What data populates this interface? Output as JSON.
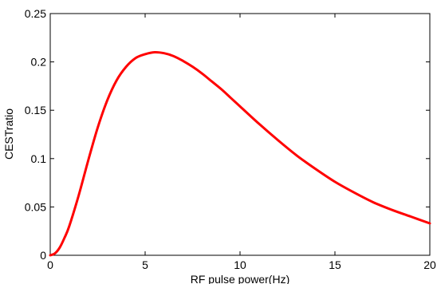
{
  "chart_data": {
    "type": "line",
    "xlabel": "RF pulse power(Hz)",
    "ylabel": "CESTratio",
    "xlim": [
      0,
      20
    ],
    "ylim": [
      0,
      0.25
    ],
    "xticks": [
      0,
      5,
      10,
      15,
      20
    ],
    "yticks": [
      0,
      0.05,
      0.1,
      0.15,
      0.2,
      0.25
    ],
    "xtick_labels": [
      "0",
      "5",
      "10",
      "15",
      "20"
    ],
    "ytick_labels": [
      "0",
      "0.05",
      "0.1",
      "0.15",
      "0.2",
      "0.25"
    ],
    "grid": false,
    "line_color": "#ff0000",
    "series": [
      {
        "x": [
          0,
          0.25,
          0.5,
          0.75,
          1,
          1.5,
          2,
          2.5,
          3,
          3.5,
          4,
          4.5,
          5,
          5.5,
          6,
          6.5,
          7,
          7.5,
          8,
          8.5,
          9,
          9.5,
          10,
          11,
          12,
          13,
          14,
          15,
          16,
          17,
          18,
          19,
          20
        ],
        "y": [
          0,
          0.002,
          0.008,
          0.018,
          0.03,
          0.062,
          0.098,
          0.132,
          0.16,
          0.181,
          0.195,
          0.204,
          0.208,
          0.21,
          0.209,
          0.206,
          0.201,
          0.195,
          0.188,
          0.18,
          0.172,
          0.163,
          0.154,
          0.136,
          0.119,
          0.103,
          0.089,
          0.076,
          0.065,
          0.055,
          0.047,
          0.04,
          0.033
        ]
      }
    ]
  }
}
